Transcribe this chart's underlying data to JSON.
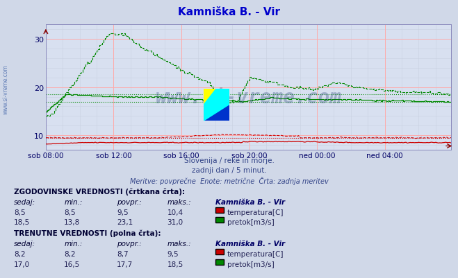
{
  "title": "Kamniška B. - Vir",
  "title_color": "#0000cc",
  "bg_color": "#d0d8e8",
  "plot_bg_color": "#d8e0f0",
  "grid_color_major": "#ffaaaa",
  "grid_color_minor": "#c8d0e0",
  "spine_color": "#8888bb",
  "xlabel_color": "#000066",
  "ylabel_color": "#000066",
  "x_tick_labels": [
    "sob 08:00",
    "sob 12:00",
    "sob 16:00",
    "sob 20:00",
    "ned 00:00",
    "ned 04:00"
  ],
  "x_tick_positions": [
    0,
    48,
    96,
    144,
    192,
    240
  ],
  "y_ticks": [
    10,
    20,
    30
  ],
  "ylim": [
    7.0,
    33.0
  ],
  "xlim": [
    0,
    287
  ],
  "subtitle1": "Slovenija / reke in morje.",
  "subtitle2": "zadnji dan / 5 minut.",
  "subtitle3": "Meritve: povprečne  Enote: metrične  Črta: zadnja meritev",
  "watermark": "www.si-vreme.com",
  "watermark_color": "#1a3a6e",
  "watermark_alpha": 0.3,
  "hist_label": "ZGODOVINSKE VREDNOSTI (črtkana črta):",
  "curr_label": "TRENUTNE VREDNOSTI (polna črta):",
  "table_headers": [
    "sedaj:",
    "min.:",
    "povpr.:",
    "maks.:",
    "Kamniška B. - Vir"
  ],
  "hist_temp_row": [
    "8,5",
    "8,5",
    "9,5",
    "10,4",
    "temperatura[C]"
  ],
  "hist_flow_row": [
    "18,5",
    "13,8",
    "23,1",
    "31,0",
    "pretok[m3/s]"
  ],
  "curr_temp_row": [
    "8,2",
    "8,2",
    "8,7",
    "9,5",
    "temperatura[C]"
  ],
  "curr_flow_row": [
    "17,0",
    "16,5",
    "17,7",
    "18,5",
    "pretok[m3/s]"
  ],
  "temp_color": "#cc0000",
  "flow_color": "#008800",
  "n_points": 288,
  "sidebar_text": "www.si-vreme.com",
  "sidebar_color": "#4466aa"
}
